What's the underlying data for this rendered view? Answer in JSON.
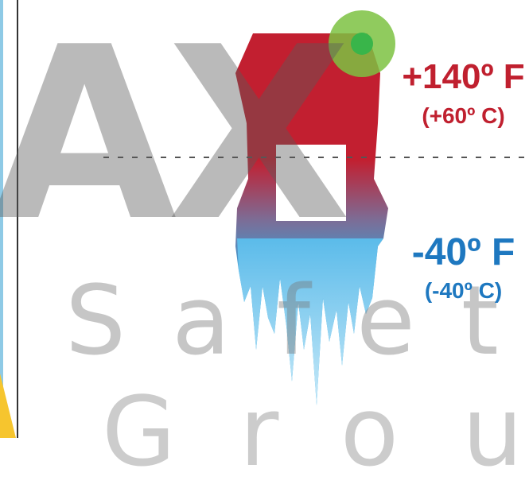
{
  "watermark": {
    "letter_a": "A",
    "letter_x": "X",
    "line2": "Safety",
    "line3": "Group"
  },
  "temperatures": {
    "high_f": "+140º F",
    "high_c": "(+60º C)",
    "low_f": "-40º F",
    "low_c": "(-40º C)"
  },
  "colors": {
    "hot": "#c0202f",
    "cold": "#1e78c0",
    "ice": "#8fd0ef",
    "badge": "#7cc242",
    "badge_inner": "#39b54a"
  }
}
